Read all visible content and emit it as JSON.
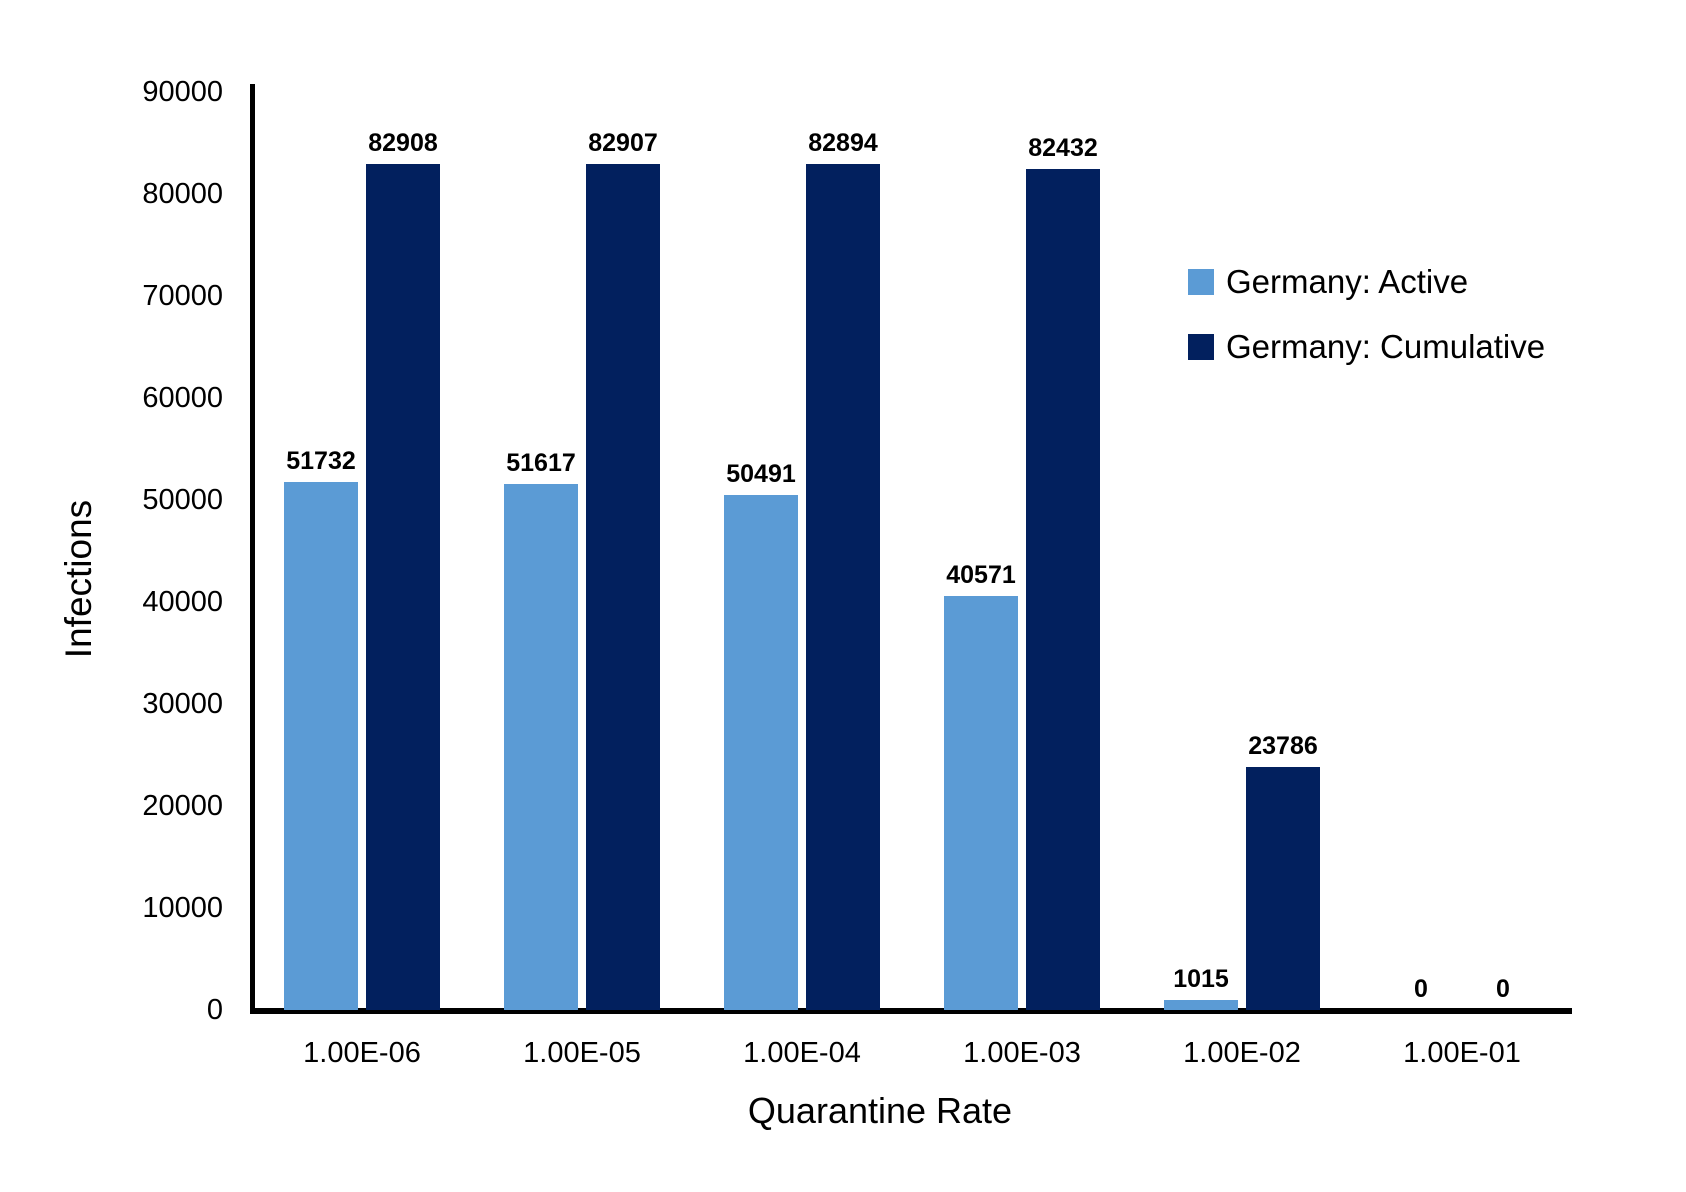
{
  "chart_data": {
    "type": "bar",
    "title": "",
    "xlabel": "Quarantine Rate",
    "ylabel": "Infections",
    "categories": [
      "1.00E-06",
      "1.00E-05",
      "1.00E-04",
      "1.00E-03",
      "1.00E-02",
      "1.00E-01"
    ],
    "series": [
      {
        "name": "Germany: Active",
        "color": "#5B9BD5",
        "values": [
          51732,
          51617,
          50491,
          40571,
          1015,
          0
        ]
      },
      {
        "name": "Germany: Cumulative",
        "color": "#02205E",
        "values": [
          82908,
          82907,
          82894,
          82432,
          23786,
          0
        ]
      }
    ],
    "data_labels": {
      "shown": true,
      "values": [
        [
          "51732",
          "51617",
          "50491",
          "40571",
          "1015",
          "0"
        ],
        [
          "82908",
          "82907",
          "82894",
          "82432",
          "23786",
          "0"
        ]
      ]
    },
    "y_axis": {
      "min": 0,
      "max": 90000,
      "tick_step": 10000,
      "tick_labels": [
        "0",
        "10000",
        "20000",
        "30000",
        "40000",
        "50000",
        "60000",
        "70000",
        "80000",
        "90000"
      ]
    },
    "grid": false,
    "legend_position": "right",
    "axis_color": "#000000",
    "background_color": "#ffffff"
  }
}
